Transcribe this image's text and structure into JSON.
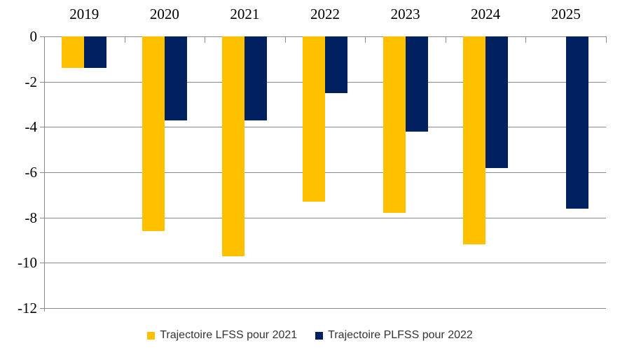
{
  "chart_data": {
    "type": "bar",
    "title": "",
    "categories": [
      "2019",
      "2020",
      "2021",
      "2022",
      "2023",
      "2024",
      "2025"
    ],
    "series": [
      {
        "name": "Trajectoire LFSS pour 2021",
        "color": "#FFC000",
        "values": [
          -1.4,
          -8.6,
          -9.7,
          -7.3,
          -7.8,
          -9.2,
          null
        ]
      },
      {
        "name": "Trajectoire PLFSS pour 2022",
        "color": "#002060",
        "values": [
          -1.4,
          -3.7,
          -3.7,
          -2.5,
          -4.2,
          -5.8,
          -7.6
        ]
      }
    ],
    "y_axis": {
      "min": -12,
      "max": 0,
      "tick_step": 2,
      "ticks": [
        0,
        -2,
        -4,
        -6,
        -8,
        -10,
        -12
      ],
      "tick_labels": [
        "0",
        "-2",
        "-4",
        "-6",
        "-8",
        "-10",
        "-12"
      ]
    },
    "x_axis": {
      "labels_position": "top"
    },
    "grid": true,
    "legend_position": "bottom",
    "colors": {
      "series_lfss": "#FFC000",
      "series_plfss": "#002060",
      "gridline": "#8a8a8a",
      "axis_text": "#000000",
      "legend_text": "#333333",
      "background": "#ffffff"
    }
  }
}
